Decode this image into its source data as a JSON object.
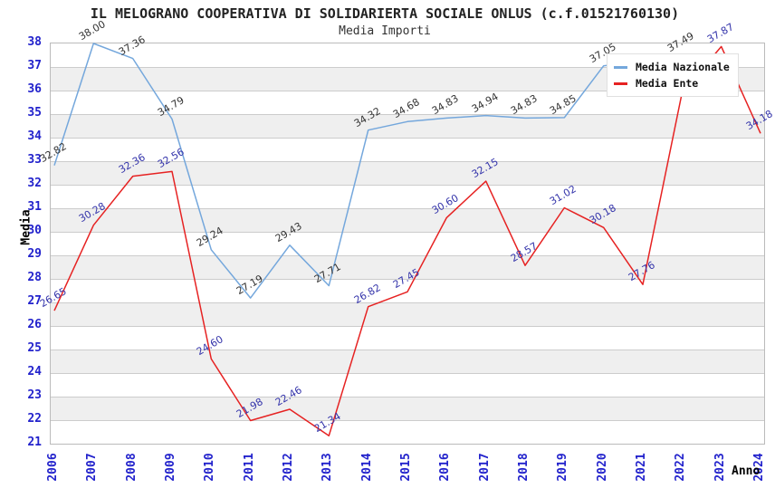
{
  "title": "IL MELOGRANO COOPERATIVA DI SOLIDARIERTA SOCIALE ONLUS (c.f.01521760130)",
  "subtitle": "Media Importi",
  "axes": {
    "y_label": "Media",
    "x_label": "Anno",
    "y_ticks": [
      38,
      37,
      36,
      35,
      34,
      33,
      32,
      31,
      30,
      29,
      28,
      27,
      26,
      25,
      24,
      23,
      22,
      21
    ],
    "x_ticks": [
      "2006",
      "2007",
      "2008",
      "2009",
      "2010",
      "2011",
      "2012",
      "2013",
      "2014",
      "2015",
      "2016",
      "2017",
      "2018",
      "2019",
      "2020",
      "2021",
      "2022",
      "2023",
      "2024"
    ]
  },
  "legend": {
    "items": [
      {
        "label": "Media Nazionale",
        "color": "#74a7dc"
      },
      {
        "label": "Media Ente",
        "color": "#e62222"
      }
    ]
  },
  "colors": {
    "tick_label": "#2222cc",
    "grid_line": "#cccccc",
    "band_fill": "#efefef",
    "plot_border": "#bbbbbb",
    "nazionale_line": "#74a7dc",
    "ente_line": "#e62222",
    "nazionale_point_label": "#333333",
    "ente_point_label": "#3333aa"
  },
  "chart_data": {
    "type": "line",
    "title": "IL MELOGRANO COOPERATIVA DI SOLIDARIERTA SOCIALE ONLUS (c.f.01521760130)",
    "subtitle": "Media Importi",
    "xlabel": "Anno",
    "ylabel": "Media",
    "x": [
      2006,
      2007,
      2008,
      2009,
      2010,
      2011,
      2012,
      2013,
      2014,
      2015,
      2016,
      2017,
      2018,
      2019,
      2020,
      2021,
      2022,
      2023,
      2024
    ],
    "ylim": [
      21,
      38
    ],
    "grid": true,
    "alternating_bands": true,
    "legend_position": "top-right-inside",
    "series": [
      {
        "name": "Media Nazionale",
        "color": "#74a7dc",
        "label_color": "#333333",
        "values": [
          32.82,
          38.0,
          37.36,
          34.79,
          29.24,
          27.19,
          29.43,
          27.71,
          34.32,
          34.68,
          34.83,
          34.94,
          34.83,
          34.85,
          37.05,
          null,
          37.49,
          null,
          null
        ]
      },
      {
        "name": "Media Ente",
        "color": "#e62222",
        "label_color": "#3333aa",
        "values": [
          26.65,
          30.28,
          32.36,
          32.56,
          24.6,
          21.98,
          22.46,
          21.34,
          26.82,
          27.45,
          30.6,
          32.15,
          28.57,
          31.02,
          30.18,
          27.76,
          35.9,
          37.87,
          34.18
        ]
      }
    ]
  }
}
